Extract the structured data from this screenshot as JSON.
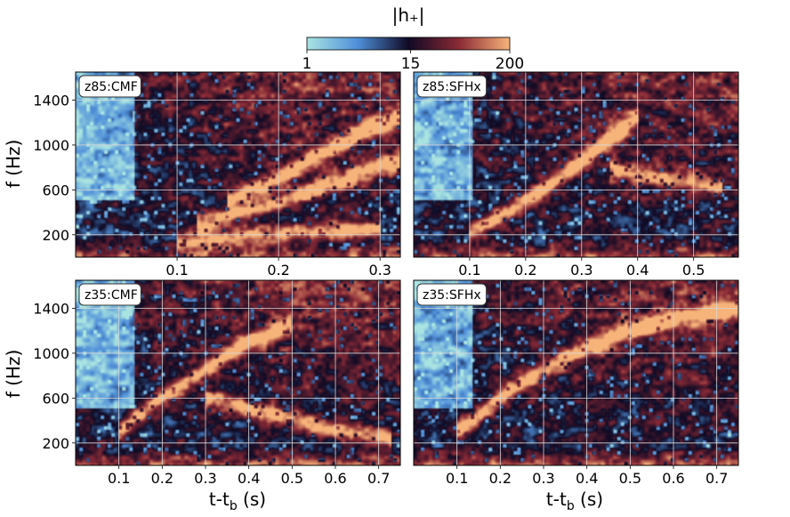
{
  "colorbar": {
    "title": "|h₊|",
    "ticks": [
      {
        "value": 1,
        "label": "1"
      },
      {
        "value": 15,
        "label": "15"
      },
      {
        "value": 200,
        "label": "200"
      }
    ],
    "range": [
      1,
      200
    ],
    "scale": "log",
    "colors": [
      "#a9e4e1",
      "#4f8fd9",
      "#0e0a24",
      "#8a2a36",
      "#f7b47a"
    ]
  },
  "shared_labels": {
    "ylabel": "f (Hz)",
    "xlabel_main": "t-t",
    "xlabel_sub": "b",
    "xlabel_unit": " (s)"
  },
  "chart_data": [
    {
      "type": "heatmap",
      "label": "z85:CMF",
      "xlim": [
        0.0,
        0.32
      ],
      "ylim": [
        0,
        1650
      ],
      "xticks": [
        0.1,
        0.2,
        0.3
      ],
      "yticks": [
        200,
        600,
        1000,
        1400
      ],
      "grid": true,
      "tracks": [
        {
          "points": [
            [
              0.1,
              140
            ],
            [
              0.2,
              210
            ],
            [
              0.3,
              250
            ]
          ],
          "amp": 180
        },
        {
          "points": [
            [
              0.12,
              300
            ],
            [
              0.2,
              480
            ],
            [
              0.25,
              650
            ],
            [
              0.3,
              800
            ],
            [
              0.32,
              850
            ]
          ],
          "amp": 150
        },
        {
          "points": [
            [
              0.15,
              500
            ],
            [
              0.2,
              700
            ],
            [
              0.24,
              900
            ],
            [
              0.28,
              1100
            ],
            [
              0.32,
              1250
            ]
          ],
          "amp": 200
        }
      ]
    },
    {
      "type": "heatmap",
      "label": "z85:SFHx",
      "xlim": [
        0.0,
        0.58
      ],
      "ylim": [
        0,
        1650
      ],
      "xticks": [
        0.1,
        0.2,
        0.3,
        0.4,
        0.5
      ],
      "yticks": [
        200,
        600,
        1000,
        1400
      ],
      "grid": true,
      "tracks": [
        {
          "points": [
            [
              0.1,
              200
            ],
            [
              0.2,
              500
            ],
            [
              0.3,
              850
            ],
            [
              0.35,
              1050
            ],
            [
              0.4,
              1250
            ]
          ],
          "amp": 200
        },
        {
          "points": [
            [
              0.35,
              780
            ],
            [
              0.45,
              700
            ],
            [
              0.55,
              620
            ]
          ],
          "amp": 90
        }
      ]
    },
    {
      "type": "heatmap",
      "label": "z35:CMF",
      "xlim": [
        0.0,
        0.75
      ],
      "ylim": [
        0,
        1650
      ],
      "xticks": [
        0.1,
        0.2,
        0.3,
        0.4,
        0.5,
        0.6,
        0.7
      ],
      "yticks": [
        200,
        600,
        1000,
        1400
      ],
      "grid": true,
      "tracks": [
        {
          "points": [
            [
              0.1,
              300
            ],
            [
              0.2,
              600
            ],
            [
              0.3,
              850
            ],
            [
              0.4,
              1100
            ],
            [
              0.5,
              1250
            ]
          ],
          "amp": 200
        },
        {
          "points": [
            [
              0.3,
              600
            ],
            [
              0.45,
              450
            ],
            [
              0.6,
              320
            ],
            [
              0.73,
              230
            ]
          ],
          "amp": 100
        }
      ]
    },
    {
      "type": "heatmap",
      "label": "z35:SFHx",
      "xlim": [
        0.0,
        0.75
      ],
      "ylim": [
        0,
        1650
      ],
      "xticks": [
        0.1,
        0.2,
        0.3,
        0.4,
        0.5,
        0.6,
        0.7
      ],
      "yticks": [
        200,
        600,
        1000,
        1400
      ],
      "grid": true,
      "tracks": [
        {
          "points": [
            [
              0.1,
              300
            ],
            [
              0.2,
              600
            ],
            [
              0.3,
              850
            ],
            [
              0.4,
              1050
            ],
            [
              0.5,
              1200
            ],
            [
              0.6,
              1300
            ],
            [
              0.75,
              1400
            ]
          ],
          "amp": 200
        }
      ]
    }
  ]
}
